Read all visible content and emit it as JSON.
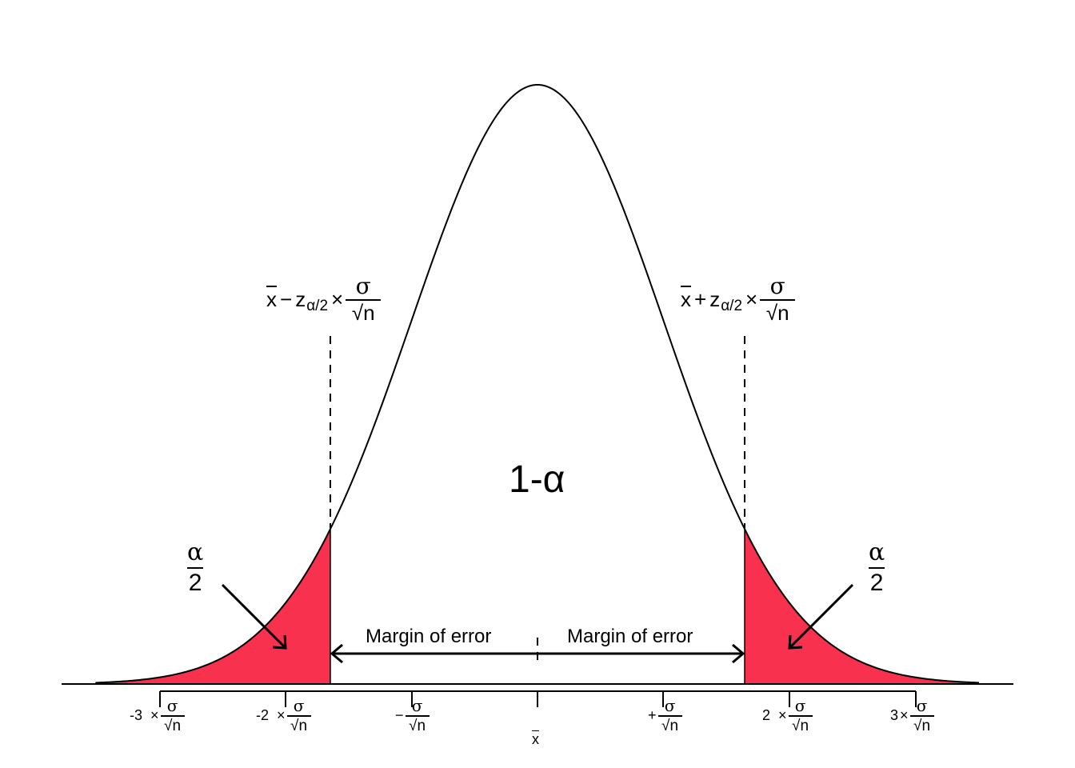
{
  "colors": {
    "tail_fill": "#F8314E",
    "stroke": "#000000",
    "background": "#FFFFFF"
  },
  "center_label": "1-α",
  "margin_label_left": "Margin of error",
  "margin_label_right": "Margin of error",
  "tail_label": {
    "numerator": "α",
    "denominator": "2"
  },
  "ci_lower": {
    "xbar": "x",
    "op": "−",
    "z": "z",
    "sub": "α/2",
    "times": "×",
    "num": "σ",
    "den": "√n"
  },
  "ci_upper": {
    "xbar": "x",
    "op": "+",
    "z": "z",
    "sub": "α/2",
    "times": "×",
    "num": "σ",
    "den": "√n"
  },
  "ticks": [
    {
      "coef": "-3",
      "times": "×",
      "num": "σ",
      "den": "√n"
    },
    {
      "coef": "-2",
      "times": "×",
      "num": "σ",
      "den": "√n"
    },
    {
      "coef": "−",
      "times": "",
      "num": "σ",
      "den": "√n"
    },
    {
      "coef": "x",
      "times": "",
      "num": "",
      "den": ""
    },
    {
      "coef": "+",
      "times": "",
      "num": "σ",
      "den": "√n"
    },
    {
      "coef": "2",
      "times": "×",
      "num": "σ",
      "den": "√n"
    },
    {
      "coef": "3",
      "times": "×",
      "num": "σ",
      "den": "√n"
    }
  ]
}
